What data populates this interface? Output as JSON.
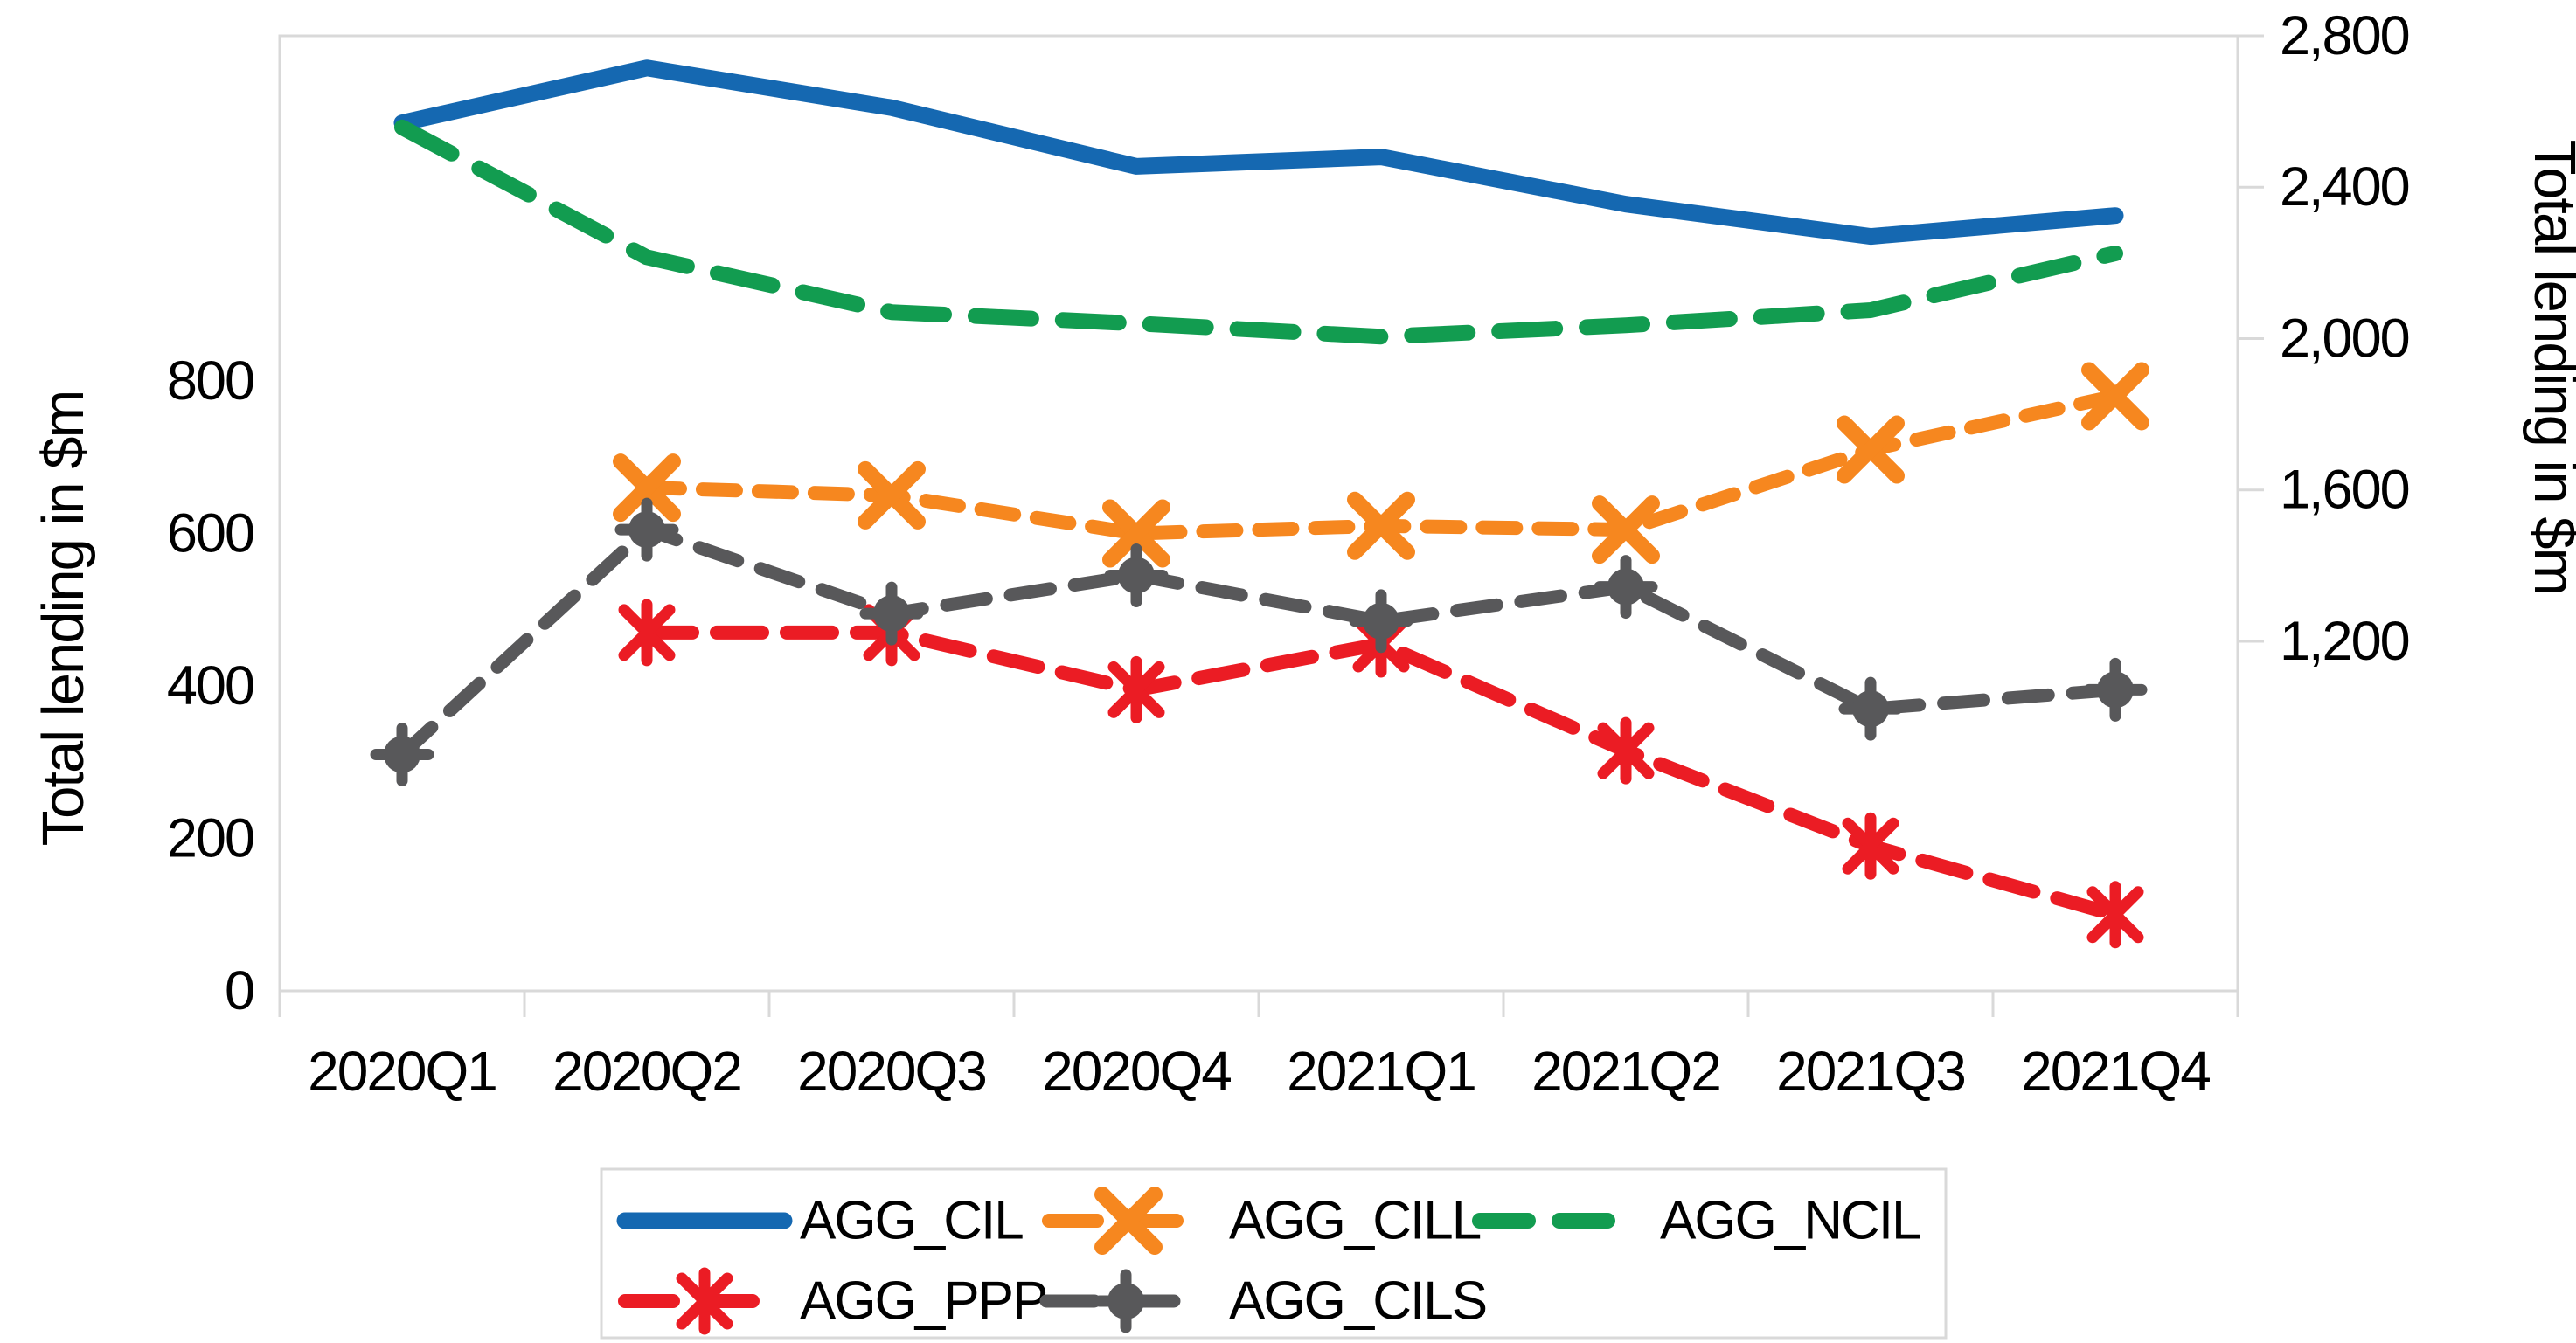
{
  "chart_data": {
    "type": "line",
    "title": "",
    "categories": [
      "2020Q1",
      "2020Q2",
      "2020Q3",
      "2020Q4",
      "2021Q1",
      "2021Q2",
      "2021Q3",
      "2021Q4"
    ],
    "series": [
      {
        "name": "AGG_CIL",
        "axis": "right",
        "color": "#1568B1",
        "style": "solid",
        "marker": "none",
        "values": [
          2570,
          2715,
          2610,
          2455,
          2480,
          2355,
          2270,
          2325
        ]
      },
      {
        "name": "AGG_CILL",
        "axis": "left",
        "color": "#F6871F",
        "style": "dashed",
        "marker": "x",
        "values": [
          null,
          660,
          650,
          600,
          610,
          605,
          710,
          780
        ]
      },
      {
        "name": "AGG_NCIL",
        "axis": "right",
        "color": "#129C50",
        "style": "dashed",
        "marker": "none",
        "values": [
          2558,
          2215,
          2070,
          2040,
          2005,
          2035,
          2075,
          2225
        ]
      },
      {
        "name": "AGG_PPP",
        "axis": "left",
        "color": "#EB1C24",
        "style": "dashed",
        "marker": "asterisk",
        "values": [
          null,
          470,
          470,
          395,
          455,
          315,
          190,
          100
        ]
      },
      {
        "name": "AGG_CILS",
        "axis": "left",
        "color": "#58585A",
        "style": "dashed",
        "marker": "circle-plus",
        "values": [
          310,
          605,
          495,
          545,
          485,
          530,
          370,
          395
        ]
      }
    ],
    "left_axis": {
      "label": "Total lending in $m",
      "tick_labels": [
        "0",
        "200",
        "400",
        "600",
        "800"
      ],
      "tick_values": [
        0,
        200,
        400,
        600,
        800
      ],
      "ylim": [
        0,
        1253
      ]
    },
    "right_axis": {
      "label": "Total lending in $m",
      "tick_labels": [
        "1,200",
        "1,600",
        "2,000",
        "2,400",
        "2,800"
      ],
      "tick_values": [
        1200,
        1600,
        2000,
        2400,
        2800
      ],
      "ylim": [
        280,
        2800
      ]
    },
    "xlabel": "",
    "grid": false,
    "legend_position": "bottom",
    "axis_line_color": "#D9D9D9",
    "text_color": "#000000"
  }
}
